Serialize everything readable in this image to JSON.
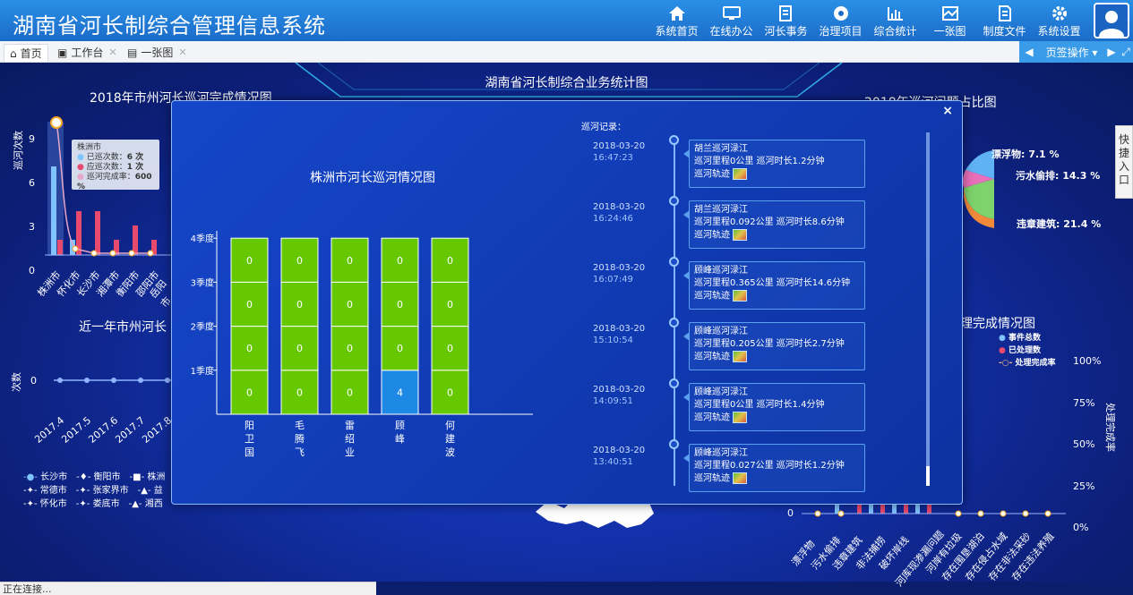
{
  "app": {
    "title": "湖南省河长制综合管理信息系统"
  },
  "nav": [
    {
      "label": "系统首页",
      "icon": "home-icon"
    },
    {
      "label": "在线办公",
      "icon": "monitor-icon"
    },
    {
      "label": "河长事务",
      "icon": "edit-icon"
    },
    {
      "label": "治理项目",
      "icon": "aperture-icon"
    },
    {
      "label": "综合统计",
      "icon": "bar-chart-icon"
    },
    {
      "label": "一张图",
      "icon": "map-icon"
    },
    {
      "label": "制度文件",
      "icon": "document-icon"
    },
    {
      "label": "系统设置",
      "icon": "gear-icon"
    }
  ],
  "tabs": [
    {
      "label": "首页",
      "icon": "home-icon"
    },
    {
      "label": "工作台",
      "icon": "briefcase-icon"
    },
    {
      "label": "一张图",
      "icon": "map-icon"
    }
  ],
  "page_ops": {
    "label": "页签操作"
  },
  "dashboard": {
    "main_title": "湖南省河长制综合业务统计图",
    "left_top_title": "2018年市州河长巡河完成情况图",
    "left_mid_title": "近一年市州河长",
    "right_top_title": "2018年巡河问题占比图",
    "right_mid_title": "理完成情况图",
    "left_top_ylabel": "巡河次数",
    "left_mid_ylabel": "次数",
    "left_top_ticks": [
      "9",
      "6",
      "3",
      "0"
    ],
    "left_top_cities": [
      "株洲市",
      "怀化市",
      "长沙市",
      "湘潭市",
      "衡阳市",
      "邵阳市",
      "岳阳市"
    ],
    "tooltip": {
      "city": "株洲市",
      "rows": [
        {
          "label": "已巡次数：",
          "value": "6 次"
        },
        {
          "label": "应巡次数：",
          "value": "1 次"
        },
        {
          "label": "巡河完成率：",
          "value": "600 %"
        }
      ]
    },
    "left_mid_months": [
      "2017.4",
      "2017.5",
      "2017.6",
      "2017.7",
      "2017.8"
    ],
    "left_mid_zero": "0",
    "legend_cities": [
      "长沙市",
      "衡阳市",
      "株洲",
      "常德市",
      "张家界市",
      "益",
      "怀化市",
      "娄底市",
      "湘西"
    ],
    "pie_labels": [
      {
        "label": "漂浮物: 7.1 %"
      },
      {
        "label": "污水偷排: 14.3 %"
      },
      {
        "label": "违章建筑: 21.4 %"
      }
    ],
    "right_legend": [
      "事件总数",
      "已处理数",
      "处理完成率"
    ],
    "right_pct": [
      "100%",
      "75%",
      "50%",
      "25%",
      "0%"
    ],
    "right_ylabel": "处理完成率",
    "right_zero": "0",
    "right_categories": [
      "漂浮物",
      "污水偷排",
      "违章建筑",
      "非法捕捞",
      "破坏岸线",
      "河库现渗漏问题",
      "河岸有垃圾",
      "存在围垦湖泊",
      "存在侵占水域",
      "存在非法采砂",
      "存在违法养殖"
    ]
  },
  "quick_entry": {
    "label": "快捷入口"
  },
  "status": {
    "text": "正在连接..."
  },
  "modal": {
    "chart_title": "株洲市河长巡河情况图",
    "close": "×",
    "timeline_label": "巡河记录：",
    "records": [
      {
        "date": "2018-03-20",
        "time": "16:47:23",
        "name": "胡兰巡河渌江",
        "detail": "巡河里程0公里 巡河时长1.2分钟",
        "track": "巡河轨迹"
      },
      {
        "date": "2018-03-20",
        "time": "16:24:46",
        "name": "胡兰巡河渌江",
        "detail": "巡河里程0.092公里 巡河时长8.6分钟",
        "track": "巡河轨迹"
      },
      {
        "date": "2018-03-20",
        "time": "16:07:49",
        "name": "顾峰巡河渌江",
        "detail": "巡河里程0.365公里 巡河时长14.6分钟",
        "track": "巡河轨迹"
      },
      {
        "date": "2018-03-20",
        "time": "15:10:54",
        "name": "顾峰巡河渌江",
        "detail": "巡河里程0.205公里 巡河时长2.7分钟",
        "track": "巡河轨迹"
      },
      {
        "date": "2018-03-20",
        "time": "14:09:51",
        "name": "顾峰巡河渌江",
        "detail": "巡河里程0公里 巡河时长1.4分钟",
        "track": "巡河轨迹"
      },
      {
        "date": "2018-03-20",
        "time": "13:40:51",
        "name": "顾峰巡河渌江",
        "detail": "巡河里程0.027公里 巡河时长1.2分钟",
        "track": "巡河轨迹"
      }
    ]
  },
  "chart_data": {
    "type": "heatmap",
    "title": "株洲市河长巡河情况图",
    "xlabel": "",
    "ylabel": "",
    "x_categories": [
      "阳卫国",
      "毛腾飞",
      "雷绍业",
      "顾峰",
      "何建波"
    ],
    "y_categories": [
      "1季度",
      "2季度",
      "3季度",
      "4季度"
    ],
    "values": [
      [
        0,
        0,
        0,
        0
      ],
      [
        0,
        0,
        0,
        0
      ],
      [
        0,
        0,
        0,
        0
      ],
      [
        4,
        0,
        0,
        0
      ],
      [
        0,
        0,
        0,
        0
      ]
    ],
    "colors": {
      "zero": "#66c800",
      "nonzero": "#1e88e5"
    }
  }
}
